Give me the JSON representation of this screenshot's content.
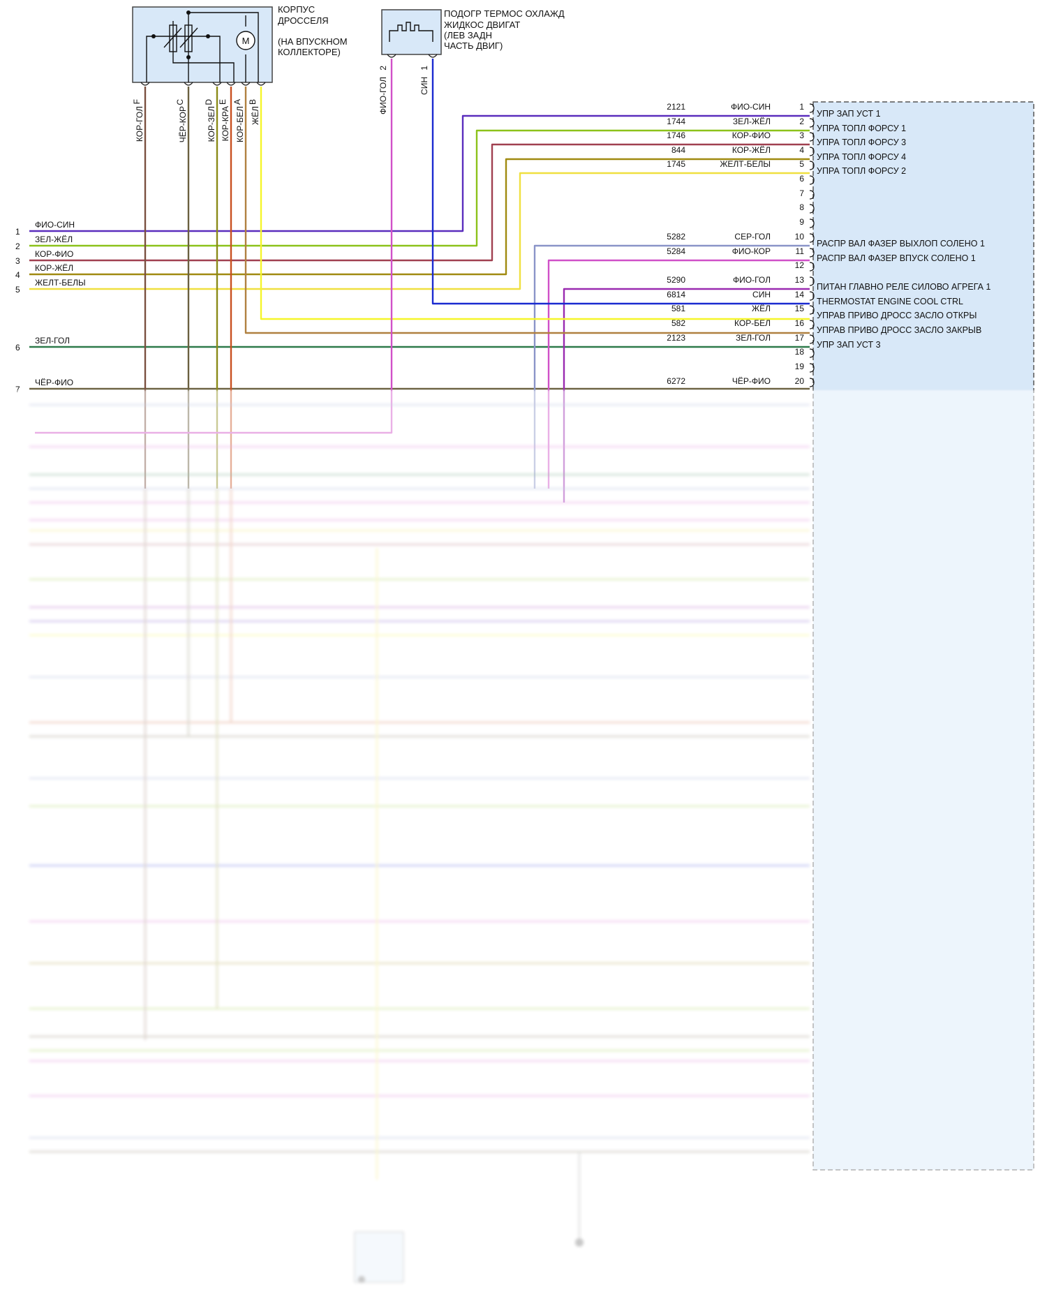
{
  "throttle_body": {
    "title": [
      "КОРПУС",
      "ДРОССЕЛЯ",
      "",
      "(НА ВПУСКНОМ",
      "КОЛЛЕКТОРЕ)"
    ],
    "pin_letters": [
      "F",
      "C",
      "D",
      "E",
      "A",
      "B"
    ],
    "wire_colors": [
      "КОР-ГОЛ",
      "ЧЁР-КОР",
      "КОР-ЗЕЛ",
      "КОР-КРА",
      "КОР-БЕЛ",
      "ЖЁЛ"
    ],
    "motor_symbol": "M"
  },
  "coolant_heater": {
    "title": [
      "ПОДОГР ТЕРМОС ОХЛАЖД",
      "ЖИДКОС ДВИГАТ",
      "(ЛЕВ ЗАДН",
      "ЧАСТЬ ДВИГ)"
    ],
    "pin_numbers": [
      "2",
      "1"
    ],
    "wire_colors": [
      "ФИО-ГОЛ",
      "СИН"
    ]
  },
  "left_connector": {
    "pins": [
      {
        "num": "1",
        "color": "ФИО-СИН"
      },
      {
        "num": "2",
        "color": "ЗЕЛ-ЖЁЛ"
      },
      {
        "num": "3",
        "color": "КОР-ФИО"
      },
      {
        "num": "4",
        "color": "КОР-ЖЁЛ"
      },
      {
        "num": "5",
        "color": "ЖЕЛТ-БЕЛЫ"
      },
      {
        "num": "6",
        "color": "ЗЕЛ-ГОЛ"
      },
      {
        "num": "7",
        "color": "ЧЁР-ФИО"
      }
    ]
  },
  "pcm_pins": [
    {
      "num": "1",
      "circuit": "2121",
      "color": "ФИО-СИН",
      "func": "УПР ЗАП УСТ 1"
    },
    {
      "num": "2",
      "circuit": "1744",
      "color": "ЗЕЛ-ЖЁЛ",
      "func": "УПРА ТОПЛ ФОРСУ 1"
    },
    {
      "num": "3",
      "circuit": "1746",
      "color": "КОР-ФИО",
      "func": "УПРА ТОПЛ ФОРСУ 3"
    },
    {
      "num": "4",
      "circuit": "844",
      "color": "КОР-ЖЁЛ",
      "func": "УПРА ТОПЛ ФОРСУ 4"
    },
    {
      "num": "5",
      "circuit": "1745",
      "color": "ЖЕЛТ-БЕЛЫ",
      "func": "УПРА ТОПЛ ФОРСУ 2"
    },
    {
      "num": "6",
      "circuit": "",
      "color": "",
      "func": ""
    },
    {
      "num": "7",
      "circuit": "",
      "color": "",
      "func": ""
    },
    {
      "num": "8",
      "circuit": "",
      "color": "",
      "func": ""
    },
    {
      "num": "9",
      "circuit": "",
      "color": "",
      "func": ""
    },
    {
      "num": "10",
      "circuit": "5282",
      "color": "СЕР-ГОЛ",
      "func": "РАСПР ВАЛ ФАЗЕР ВЫХЛОП СОЛЕНО 1"
    },
    {
      "num": "11",
      "circuit": "5284",
      "color": "ФИО-КОР",
      "func": "РАСПР ВАЛ ФАЗЕР ВПУСК СОЛЕНО 1"
    },
    {
      "num": "12",
      "circuit": "",
      "color": "",
      "func": ""
    },
    {
      "num": "13",
      "circuit": "5290",
      "color": "ФИО-ГОЛ",
      "func": "ПИТАН ГЛАВНО РЕЛЕ СИЛОВО АГРЕГА 1"
    },
    {
      "num": "14",
      "circuit": "6814",
      "color": "СИН",
      "func": "THERMOSTAT ENGINE COOL CTRL"
    },
    {
      "num": "15",
      "circuit": "581",
      "color": "ЖЁЛ",
      "func": "УПРАВ ПРИВО ДРОСС ЗАСЛО ОТКРЫ"
    },
    {
      "num": "16",
      "circuit": "582",
      "color": "КОР-БЕЛ",
      "func": "УПРАВ ПРИВО ДРОСС ЗАСЛО ЗАКРЫВ"
    },
    {
      "num": "17",
      "circuit": "2123",
      "color": "ЗЕЛ-ГОЛ",
      "func": "УПР ЗАП УСТ 3"
    },
    {
      "num": "18",
      "circuit": "",
      "color": "",
      "func": ""
    },
    {
      "num": "19",
      "circuit": "",
      "color": "",
      "func": ""
    },
    {
      "num": "20",
      "circuit": "6272",
      "color": "ЧЁР-ФИО",
      "func": ""
    }
  ],
  "wire_hex": {
    "violet": "#5a2dbd",
    "green_yellow": "#8cc21a",
    "brown_violet": "#a04050",
    "brown_yellow": "#a08a10",
    "yellow_white": "#f0e040",
    "green_blue": "#2e7a4a",
    "grey_blue": "#8a94c8",
    "violet_brown": "#d050c8",
    "violet_blue": "#9a2ab0",
    "blue": "#1a2ad0",
    "yellow": "#f5f52a",
    "brown_white": "#b08040",
    "brown_blue": "#7a5040",
    "black_brown": "#6a6040",
    "brown_green": "#8a8a18",
    "brown_red": "#c85020",
    "pcm_fill": "#d8e8f8"
  }
}
